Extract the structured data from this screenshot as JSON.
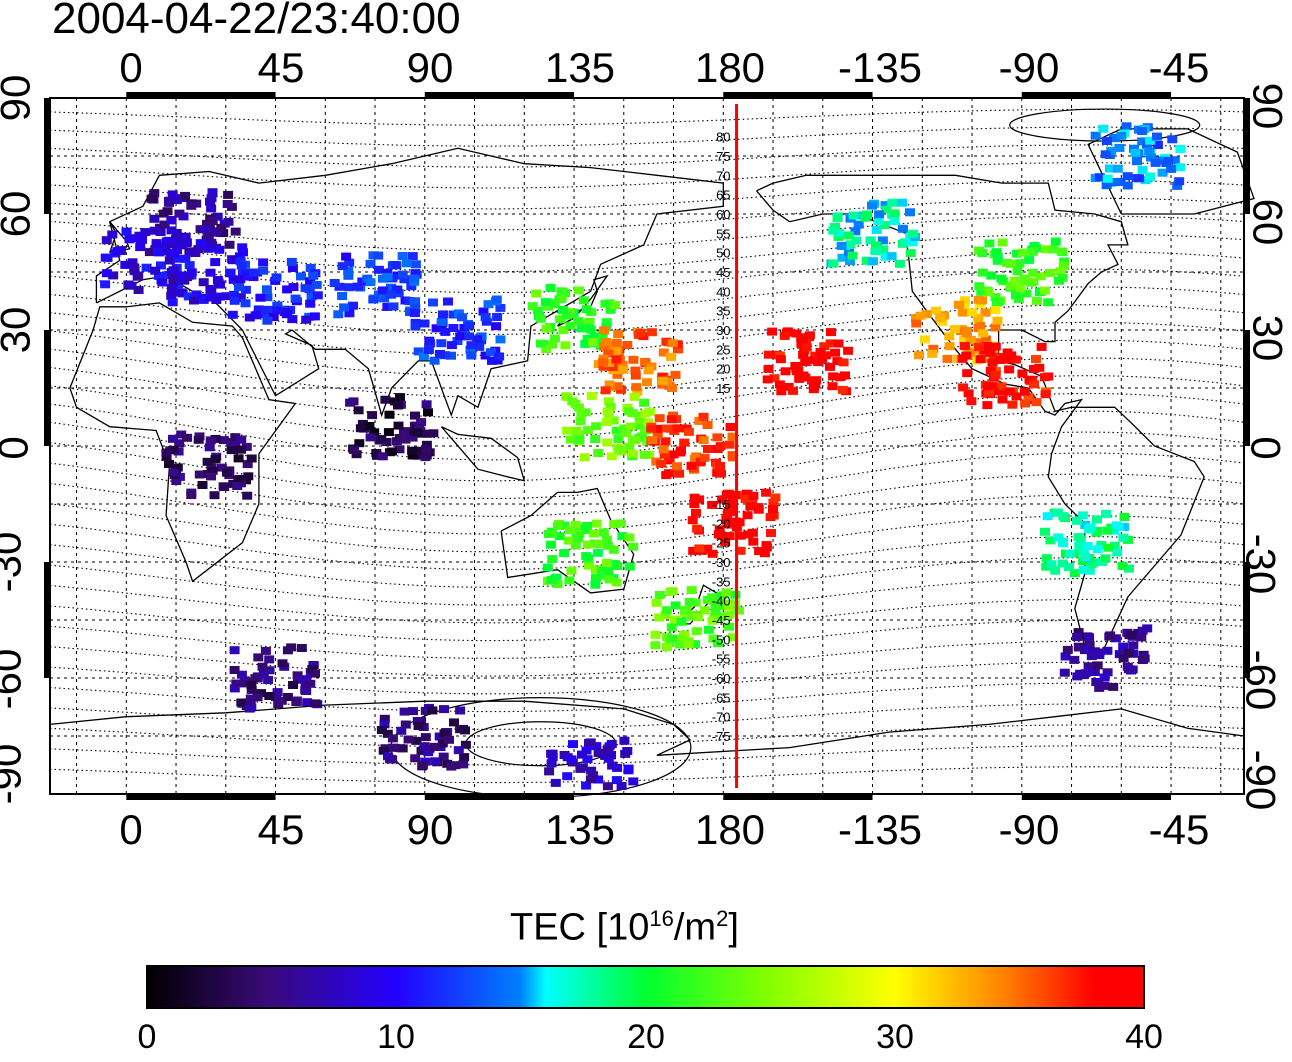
{
  "title": "2004-04-22/23:40:00",
  "axes": {
    "top_ticks": [
      "0",
      "45",
      "90",
      "135",
      "180",
      "-135",
      "-90",
      "-45"
    ],
    "bottom_ticks": [
      "0",
      "45",
      "90",
      "135",
      "180",
      "-135",
      "-90",
      "-45"
    ],
    "left_ticks": [
      "90",
      "60",
      "30",
      "0",
      "-30",
      "-60",
      "-90"
    ],
    "right_ticks": [
      "90",
      "60",
      "30",
      "0",
      "-30",
      "-60",
      "-90"
    ],
    "lon_values": [
      0,
      45,
      90,
      135,
      180,
      225,
      270,
      315
    ],
    "lat_values": [
      90,
      60,
      30,
      0,
      -30,
      -60,
      -90
    ],
    "xlim_lon": [
      -23,
      337
    ],
    "ylim_lat": [
      -90,
      90
    ],
    "grid": true
  },
  "contour_labels": [
    "80",
    "75",
    "70",
    "65",
    "60",
    "55",
    "50",
    "45",
    "40",
    "35",
    "30",
    "25",
    "20",
    "15",
    "-15",
    "-20",
    "-25",
    "-30",
    "-35",
    "-40",
    "-45",
    "-50",
    "-55",
    "-60",
    "-65",
    "-70",
    "-75"
  ],
  "contour_label_lats": [
    80,
    75,
    70,
    65,
    60,
    55,
    50,
    45,
    40,
    35,
    30,
    25,
    20,
    15,
    -15,
    -20,
    -25,
    -30,
    -35,
    -40,
    -45,
    -50,
    -55,
    -60,
    -65,
    -70,
    -75
  ],
  "terminator_lon": 184,
  "colorbar": {
    "title": "TEC  [10",
    "title_sup1": "16",
    "title_mid": "/m",
    "title_sup2": "2",
    "title_end": "]",
    "ticks": [
      "0",
      "10",
      "20",
      "30",
      "40"
    ],
    "range": [
      0,
      40
    ]
  },
  "colors": {
    "terminator": "#ff0000",
    "frame": "#000000"
  },
  "chart_data": {
    "type": "heatmap",
    "quantity": "TEC",
    "units": "10^16/m^2",
    "clusters": [
      {
        "lon": 20,
        "lat": 58,
        "tec": 6
      },
      {
        "lon": 5,
        "lat": 48,
        "tec": 9
      },
      {
        "lon": 25,
        "lat": 45,
        "tec": 9
      },
      {
        "lon": 45,
        "lat": 40,
        "tec": 11
      },
      {
        "lon": 75,
        "lat": 42,
        "tec": 12
      },
      {
        "lon": 100,
        "lat": 30,
        "tec": 12
      },
      {
        "lon": 135,
        "lat": 33,
        "tec": 22
      },
      {
        "lon": 155,
        "lat": 22,
        "tec": 35
      },
      {
        "lon": 145,
        "lat": 5,
        "tec": 24
      },
      {
        "lon": 170,
        "lat": 0,
        "tec": 37
      },
      {
        "lon": 183,
        "lat": -20,
        "tec": 39
      },
      {
        "lon": 140,
        "lat": -28,
        "tec": 22
      },
      {
        "lon": 172,
        "lat": -45,
        "tec": 23
      },
      {
        "lon": 25,
        "lat": -5,
        "tec": 4
      },
      {
        "lon": 80,
        "lat": 5,
        "tec": 3
      },
      {
        "lon": 45,
        "lat": -60,
        "tec": 5
      },
      {
        "lon": 90,
        "lat": -75,
        "tec": 5
      },
      {
        "lon": 140,
        "lat": -84,
        "tec": 8
      },
      {
        "lon": 225,
        "lat": 55,
        "tec": 17
      },
      {
        "lon": 205,
        "lat": 22,
        "tec": 39
      },
      {
        "lon": 270,
        "lat": 45,
        "tec": 22
      },
      {
        "lon": 250,
        "lat": 30,
        "tec": 33
      },
      {
        "lon": 265,
        "lat": 18,
        "tec": 38
      },
      {
        "lon": 290,
        "lat": -25,
        "tec": 18
      },
      {
        "lon": 295,
        "lat": -55,
        "tec": 6
      },
      {
        "lon": 305,
        "lat": 75,
        "tec": 14
      }
    ]
  }
}
